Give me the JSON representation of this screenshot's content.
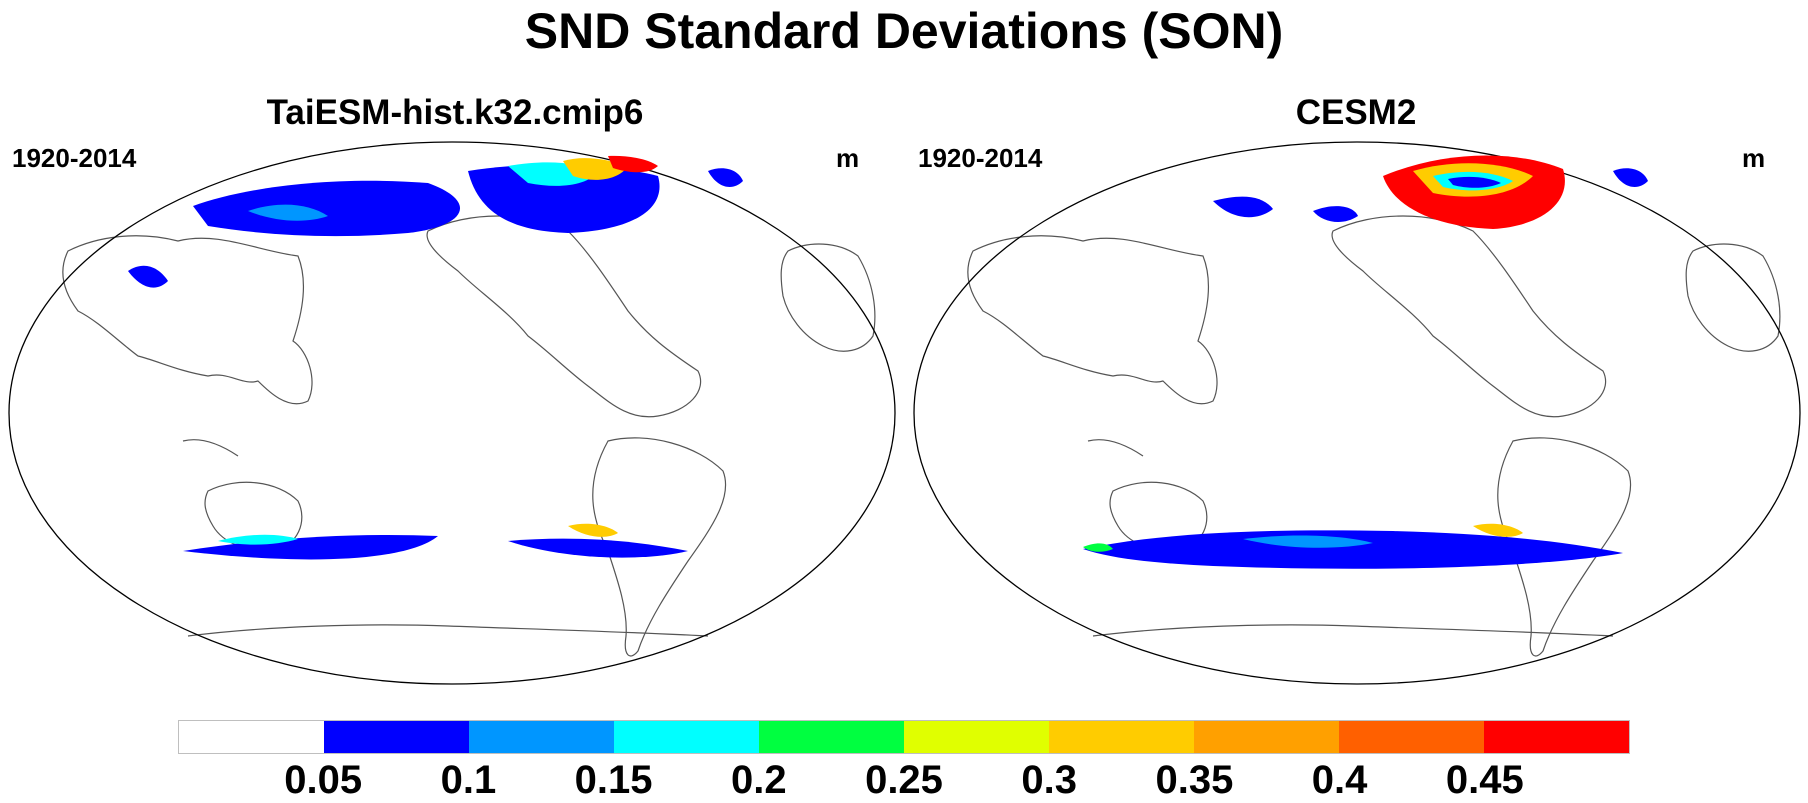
{
  "title": "SND Standard Deviations (SON)",
  "panels": [
    {
      "title": "TaiESM-hist.k32.cmip6",
      "period": "1920-2014",
      "units": "m"
    },
    {
      "title": "CESM2",
      "period": "1920-2014",
      "units": "m"
    }
  ],
  "colorbar": {
    "colors": [
      "#ffffff",
      "#0000ff",
      "#0096ff",
      "#00ffff",
      "#00ff40",
      "#e0ff00",
      "#ffcc00",
      "#ffa000",
      "#ff6000",
      "#ff0000"
    ],
    "tick_labels": [
      "0.05",
      "0.1",
      "0.15",
      "0.2",
      "0.25",
      "0.3",
      "0.35",
      "0.4",
      "0.45"
    ]
  }
}
